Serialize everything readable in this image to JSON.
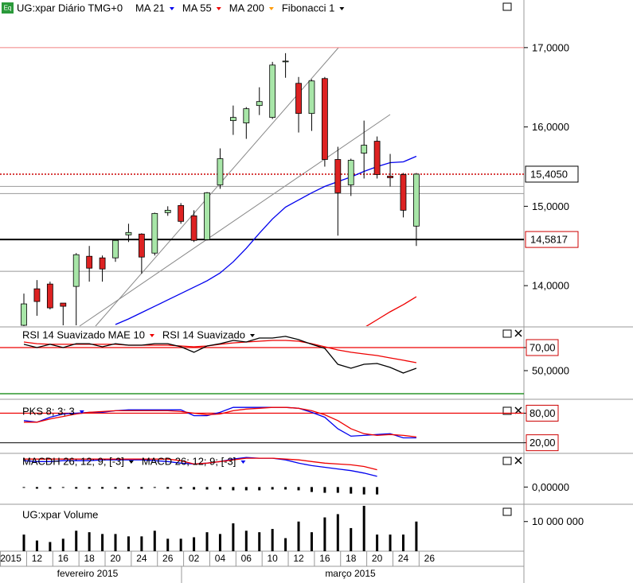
{
  "header": {
    "icon": "Eq"
  },
  "time_axis": {
    "categories": [
      "2015",
      null,
      "12",
      null,
      "16",
      null,
      "18",
      null,
      "20",
      null,
      "24",
      null,
      "26",
      null,
      "02",
      null,
      "04",
      null,
      "06",
      null,
      "10",
      null,
      "12",
      null,
      "16",
      null,
      "18",
      null,
      "20",
      null,
      "24",
      null,
      "26"
    ],
    "months": [
      "fevereiro 2015",
      "março 2015"
    ]
  },
  "chart_data": [
    {
      "type": "candlestick",
      "title": "UG:xpar Diário TMG+0",
      "up_color": "#a8e6a8",
      "down_color": "#dd2222",
      "open": [
        13.5,
        13.96,
        14.02,
        13.78,
        13.99,
        14.37,
        14.35,
        14.35,
        14.64,
        14.65,
        14.41,
        14.92,
        15.01,
        14.88,
        14.58,
        15.27,
        16.08,
        16.05,
        16.27,
        16.12,
        16.82,
        16.55,
        16.17,
        16.61,
        15.59,
        15.27,
        15.67,
        15.82,
        15.38,
        15.4,
        14.75
      ],
      "high": [
        13.9,
        14.07,
        14.05,
        13.78,
        14.41,
        14.5,
        14.38,
        14.58,
        14.78,
        14.66,
        14.92,
        15.0,
        15.04,
        14.95,
        15.18,
        15.73,
        16.27,
        16.25,
        16.5,
        16.82,
        16.93,
        16.63,
        16.6,
        16.63,
        15.75,
        15.6,
        16.08,
        15.88,
        15.66,
        15.42,
        15.42
      ],
      "low": [
        13.45,
        13.62,
        13.7,
        13.5,
        13.5,
        14.05,
        14.05,
        14.3,
        14.55,
        14.15,
        14.38,
        14.88,
        14.78,
        14.55,
        14.57,
        15.22,
        15.9,
        15.85,
        16.15,
        16.1,
        16.62,
        15.93,
        15.95,
        15.5,
        14.63,
        15.13,
        15.35,
        15.35,
        15.25,
        14.86,
        14.5
      ],
      "close": [
        13.77,
        13.8,
        13.72,
        13.74,
        14.39,
        14.22,
        14.21,
        14.57,
        14.67,
        14.36,
        14.91,
        14.95,
        14.81,
        14.57,
        15.17,
        15.6,
        16.12,
        16.23,
        16.32,
        16.78,
        16.83,
        16.17,
        16.58,
        15.59,
        15.17,
        15.58,
        15.77,
        15.4,
        15.36,
        14.95,
        15.405
      ],
      "overlays": [
        {
          "name": "MA 21",
          "color": "#0000ee",
          "values": [
            null,
            null,
            null,
            null,
            null,
            null,
            null,
            13.51,
            13.58,
            13.66,
            13.74,
            13.82,
            13.9,
            13.98,
            14.06,
            14.16,
            14.3,
            14.47,
            14.66,
            14.84,
            14.99,
            15.08,
            15.17,
            15.25,
            15.31,
            15.37,
            15.44,
            15.5,
            15.55,
            15.56,
            15.63
          ]
        },
        {
          "name": "MA 55",
          "color": "#ee0000",
          "values": [
            null,
            null,
            null,
            null,
            null,
            null,
            null,
            null,
            null,
            null,
            null,
            null,
            null,
            null,
            null,
            null,
            null,
            null,
            null,
            null,
            null,
            null,
            null,
            null,
            null,
            null,
            13.47,
            13.57,
            13.67,
            13.76,
            13.86
          ]
        },
        {
          "name": "MA 200",
          "color": "#ff9900",
          "values": [
            null,
            null,
            null,
            null,
            null,
            null,
            null,
            null,
            null,
            null,
            null,
            null,
            null,
            null,
            null,
            null,
            null,
            null,
            null,
            null,
            null,
            null,
            null,
            null,
            null,
            null,
            null,
            null,
            null,
            null,
            null
          ]
        }
      ],
      "fibonacci": {
        "name": "Fibonacci 1",
        "levels": [
          {
            "value": 17.0,
            "color": "#f08080"
          },
          {
            "value": 15.25,
            "color": "#999999"
          },
          {
            "value": 15.16,
            "color": "#999999"
          },
          {
            "value": 14.18,
            "color": "#999999"
          }
        ]
      },
      "markers": [
        {
          "value": 15.405,
          "label": "15,4050",
          "color": "#cc0000",
          "style": "dotted",
          "text_color": "#000000"
        },
        {
          "value": 14.5817,
          "label": "14,5817",
          "color": "#000000",
          "style": "solid",
          "text_color": "#cc0000"
        }
      ],
      "ylim": [
        13.49,
        17.6
      ],
      "yticks": [
        {
          "value": 17,
          "label": "17,0000"
        },
        {
          "value": 16,
          "label": "16,0000"
        },
        {
          "value": 15,
          "label": "15,0000"
        },
        {
          "value": 14,
          "label": "14,0000"
        }
      ]
    },
    {
      "type": "line",
      "series": [
        {
          "name": "RSI 14 Suavizado MAE 10",
          "color": "#ee0000",
          "values": [
            74.8,
            73.4,
            72.8,
            72.8,
            72.8,
            72.8,
            72.8,
            72.8,
            72.1,
            72.1,
            72.1,
            72.1,
            71.4,
            70.7,
            71.4,
            72.8,
            74.1,
            74.8,
            75.5,
            76.2,
            76.2,
            75.5,
            73.4,
            70.7,
            67.9,
            65.9,
            64.5,
            63.1,
            61.0,
            59.0,
            56.9
          ]
        },
        {
          "name": "RSI 14 Suavizado",
          "color": "#000000",
          "values": [
            72.8,
            70,
            72.8,
            70,
            73.4,
            73.4,
            70.7,
            73.4,
            72.1,
            72.1,
            73.4,
            73.4,
            70.7,
            65.9,
            71.4,
            73.4,
            76.2,
            74.8,
            78.3,
            78.3,
            79.7,
            76.9,
            72.8,
            69.3,
            55.5,
            52.1,
            55.5,
            56.2,
            52.8,
            47.9,
            52.1
          ]
        }
      ],
      "levels": [
        {
          "value": 70,
          "color": "#ee0000"
        },
        {
          "value": 30,
          "color": "#008000"
        }
      ],
      "ylim": [
        26.55,
        87.24
      ],
      "yticks": [
        {
          "value": 70,
          "label": "70,00"
        },
        {
          "value": 50,
          "label": "50,0000"
        }
      ]
    },
    {
      "type": "line",
      "series": [
        {
          "name": "PKS 8; 3; 3",
          "color": "#0000ee",
          "values": [
            65,
            61.7,
            71.7,
            78.3,
            80,
            81.7,
            81.7,
            85,
            86.7,
            86.7,
            86.7,
            86.7,
            86.7,
            75,
            75,
            81.7,
            91.7,
            91.7,
            91.7,
            91.7,
            91.7,
            90,
            81.7,
            71.7,
            48.3,
            33.3,
            35,
            36.7,
            38.3,
            30,
            30
          ]
        },
        {
          "color": "#ee0000",
          "values": [
            61.7,
            61.7,
            68.3,
            73.3,
            78.3,
            81.7,
            83.3,
            85,
            85,
            85,
            85,
            85,
            83.3,
            80,
            76.7,
            78.3,
            85,
            88.3,
            90,
            91.7,
            91.7,
            90,
            85,
            76.7,
            65,
            48.3,
            38.3,
            35,
            36.7,
            35,
            31.7
          ]
        }
      ],
      "levels": [
        {
          "value": 80,
          "color": "#ee0000"
        },
        {
          "value": 20,
          "color": "#333333"
        }
      ],
      "ylim": [
        1.67,
        105
      ],
      "yticks": [
        {
          "value": 80,
          "label": "80,00"
        },
        {
          "value": 20,
          "label": "20,00"
        }
      ]
    },
    {
      "type": "line",
      "histogram": {
        "name": "MACDH 26; 12; 9; [-3]",
        "color": "#000000",
        "values": [
          -0.01,
          -0.02,
          -0.02,
          -0.01,
          -0.02,
          -0.02,
          -0.02,
          -0.02,
          -0.02,
          -0.02,
          -0.01,
          -0.02,
          -0.02,
          -0.03,
          -0.03,
          -0.03,
          -0.04,
          -0.04,
          -0.04,
          -0.03,
          -0.03,
          -0.04,
          -0.06,
          -0.07,
          -0.07,
          -0.08,
          -0.09,
          -0.09,
          null,
          null,
          null
        ]
      },
      "series": [
        {
          "name": "MACD 26; 12; 9; [-3]",
          "color": "#0000ee",
          "values": [
            0.32,
            0.31,
            0.31,
            0.32,
            0.32,
            0.32,
            0.33,
            0.33,
            0.33,
            0.33,
            0.32,
            0.31,
            0.29,
            0.28,
            0.29,
            0.31,
            0.34,
            0.36,
            0.35,
            0.35,
            0.33,
            0.29,
            0.26,
            0.24,
            0.22,
            0.2,
            0.17,
            0.13,
            null,
            null,
            null
          ]
        },
        {
          "color": "#ee0000",
          "values": [
            0.34,
            0.34,
            0.34,
            0.34,
            0.34,
            0.34,
            0.34,
            0.34,
            0.34,
            0.34,
            0.34,
            0.34,
            0.32,
            0.28,
            0.29,
            0.31,
            0.33,
            0.35,
            0.35,
            0.35,
            0.34,
            0.33,
            0.31,
            0.29,
            0.28,
            0.27,
            0.25,
            0.21,
            null,
            null,
            null
          ]
        }
      ],
      "ylim": [
        -0.19,
        0.39
      ],
      "yticks": [
        {
          "value": 0,
          "label": "0,00000"
        }
      ]
    },
    {
      "type": "bar",
      "title": "UG:xpar Volume",
      "color": "#000000",
      "values": [
        5600000,
        3600000,
        3100000,
        4200000,
        6900000,
        6400000,
        5800000,
        5800000,
        5000000,
        5000000,
        6900000,
        4200000,
        4200000,
        4700000,
        6400000,
        5800000,
        9400000,
        6900000,
        6400000,
        7500000,
        4400000,
        10000000,
        6400000,
        11400000,
        12500000,
        7800000,
        16000000,
        5600000,
        5600000,
        5600000,
        10000000
      ],
      "ylim": [
        0,
        15300000
      ],
      "yticks": [
        {
          "value": 10000000,
          "label": "10 000 000"
        }
      ]
    }
  ]
}
